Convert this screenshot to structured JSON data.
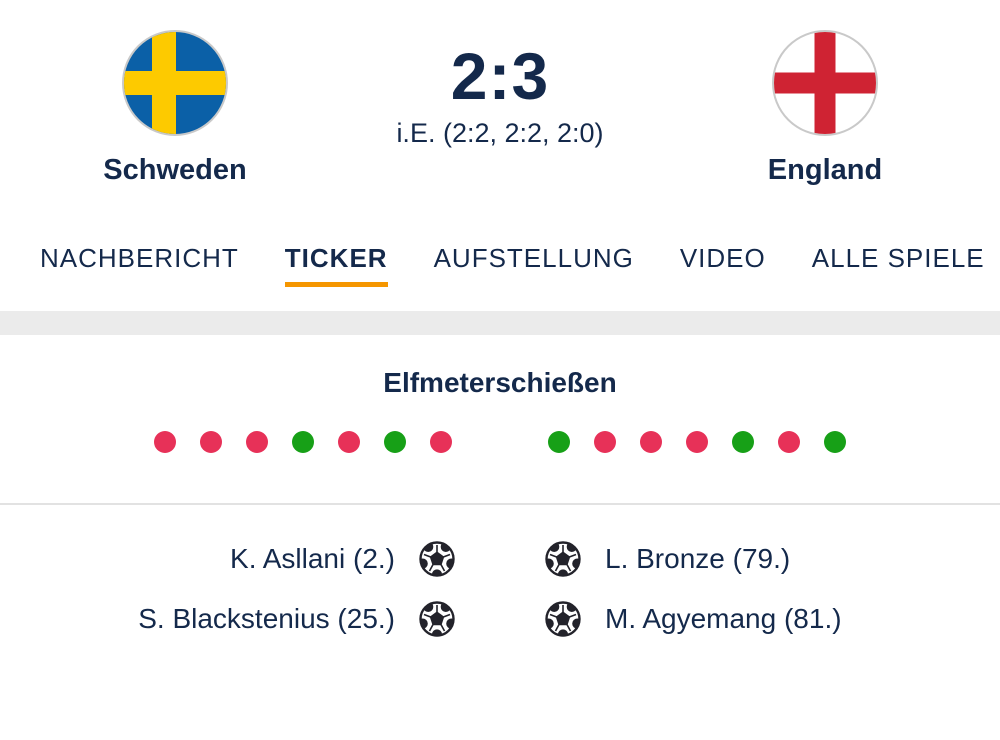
{
  "match": {
    "home": {
      "name": "Schweden"
    },
    "away": {
      "name": "England"
    },
    "score": "2:3",
    "score_detail": "i.E. (2:2, 2:2, 2:0)"
  },
  "tabs": [
    {
      "label": "NACHBERICHT",
      "active": false
    },
    {
      "label": "TICKER",
      "active": true
    },
    {
      "label": "AUFSTELLUNG",
      "active": false
    },
    {
      "label": "VIDEO",
      "active": false
    },
    {
      "label": "ALLE SPIELE",
      "active": false
    }
  ],
  "shootout": {
    "title": "Elfmeterschießen",
    "home_kicks": [
      "miss",
      "miss",
      "miss",
      "goal",
      "miss",
      "goal",
      "miss"
    ],
    "away_kicks": [
      "goal",
      "miss",
      "miss",
      "miss",
      "goal",
      "miss",
      "goal"
    ]
  },
  "goals": {
    "home": [
      {
        "text": "K. Asllani (2.)"
      },
      {
        "text": "S. Blackstenius (25.)"
      }
    ],
    "away": [
      {
        "text": "L. Bronze (79.)"
      },
      {
        "text": "M. Agyemang (81.)"
      }
    ]
  },
  "colors": {
    "text": "#14294b",
    "accent_orange": "#f59600",
    "goal_green": "#17a017",
    "miss_red": "#e73158",
    "band_gray": "#ebebeb",
    "divider_gray": "#e2e2e2",
    "sweden_blue": "#0b60a7",
    "sweden_yellow": "#fdca00",
    "england_red": "#cf2333"
  }
}
